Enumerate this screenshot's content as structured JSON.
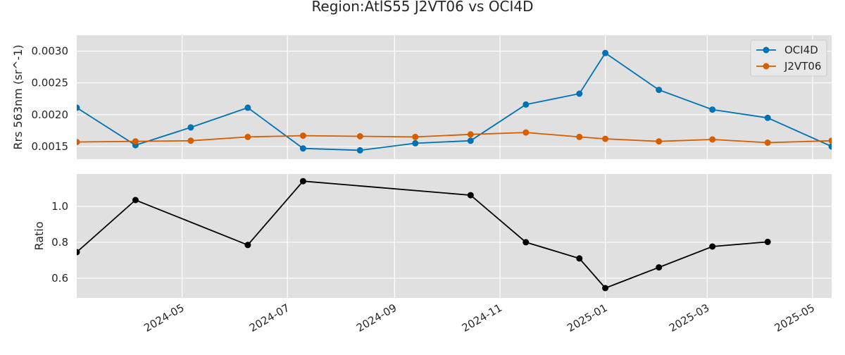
{
  "figure": {
    "title": "Region:AtlS55 J2VT06 vs OCI4D"
  },
  "chart_data": [
    {
      "type": "line",
      "panel": "top",
      "ylabel": "Rrs 563nm (sr^-1)",
      "xlim": [
        "2024-03-01",
        "2025-05-12"
      ],
      "ylim": [
        0.0013,
        0.00325
      ],
      "yticks": [
        0.0015,
        0.002,
        0.0025,
        0.003
      ],
      "ytick_labels": [
        "0.0015",
        "0.0020",
        "0.0025",
        "0.0030"
      ],
      "grid": true,
      "legend": "top-right",
      "series": [
        {
          "name": "OCI4D",
          "color": "#0072b2",
          "x": [
            "2024-03-01",
            "2024-04-04",
            "2024-05-06",
            "2024-06-08",
            "2024-07-10",
            "2024-08-12",
            "2024-09-13",
            "2024-10-15",
            "2024-11-16",
            "2024-12-17",
            "2025-01-01",
            "2025-02-01",
            "2025-03-04",
            "2025-04-05",
            "2025-05-12"
          ],
          "values": [
            0.00211,
            0.00152,
            0.0018,
            0.00211,
            0.00147,
            0.00144,
            0.00155,
            0.00159,
            0.00216,
            0.00233,
            0.00297,
            0.00239,
            0.00208,
            0.00195,
            0.0015
          ]
        },
        {
          "name": "J2VT06",
          "color": "#d55e00",
          "x": [
            "2024-03-01",
            "2024-04-04",
            "2024-05-06",
            "2024-06-08",
            "2024-07-10",
            "2024-08-12",
            "2024-09-13",
            "2024-10-15",
            "2024-11-16",
            "2024-12-17",
            "2025-01-01",
            "2025-02-01",
            "2025-03-04",
            "2025-04-05",
            "2025-05-12"
          ],
          "values": [
            0.00157,
            0.00158,
            0.00159,
            0.00165,
            0.00167,
            0.00166,
            0.00165,
            0.00169,
            0.00172,
            0.00165,
            0.00162,
            0.00158,
            0.00161,
            0.00156,
            0.00159
          ]
        }
      ]
    },
    {
      "type": "line",
      "panel": "bottom",
      "ylabel": "Ratio",
      "xlim": [
        "2024-03-01",
        "2025-05-12"
      ],
      "ylim": [
        0.49,
        1.18
      ],
      "yticks": [
        0.6,
        0.8,
        1.0
      ],
      "ytick_labels": [
        "0.6",
        "0.8",
        "1.0"
      ],
      "grid": true,
      "xticks": [
        "2024-05-01",
        "2024-07-01",
        "2024-09-01",
        "2024-11-01",
        "2025-01-01",
        "2025-03-01",
        "2025-05-01"
      ],
      "xtick_labels": [
        "2024-05",
        "2024-07",
        "2024-09",
        "2024-11",
        "2025-01",
        "2025-03",
        "2025-05"
      ],
      "series": [
        {
          "color": "#000000",
          "x": [
            "2024-03-01",
            "2024-04-04",
            "2024-06-08",
            "2024-07-10",
            "2024-10-15",
            "2024-11-16",
            "2024-12-17",
            "2025-01-01",
            "2025-02-01",
            "2025-03-04",
            "2025-04-05"
          ],
          "values": [
            0.745,
            1.035,
            0.785,
            1.14,
            1.062,
            0.8,
            0.71,
            0.545,
            0.66,
            0.776,
            0.802
          ]
        }
      ]
    }
  ]
}
